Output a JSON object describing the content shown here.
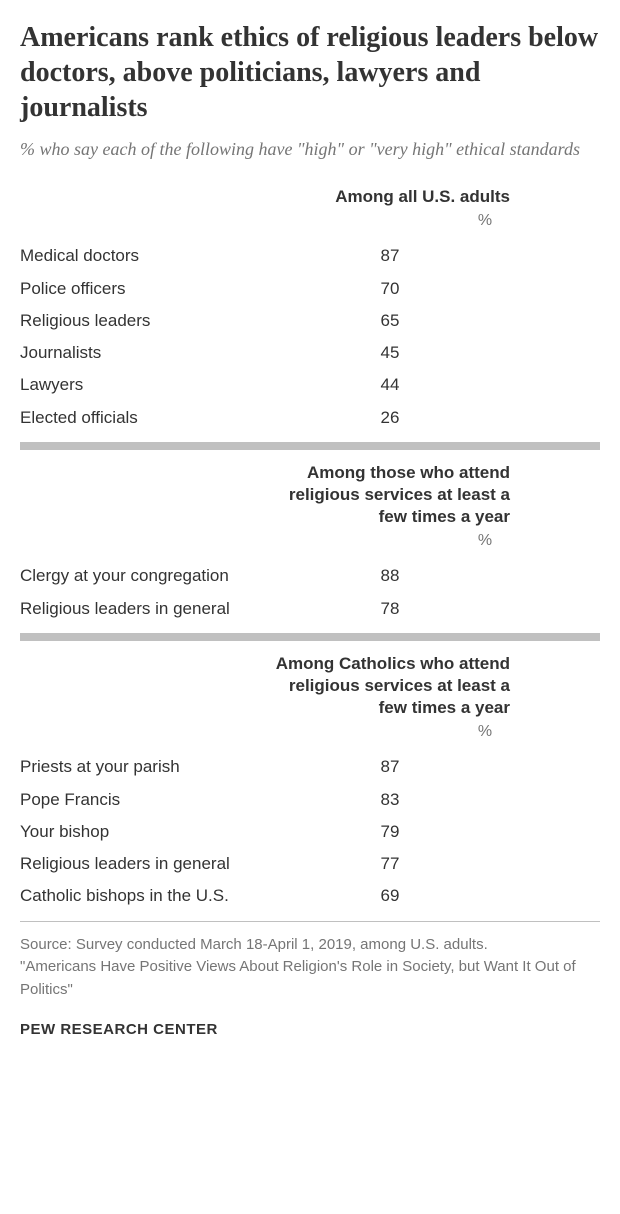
{
  "title": "Americans rank ethics of religious leaders below doctors, above politicians, lawyers and journalists",
  "subtitle": "% who say each of the following have \"high\" or \"very high\" ethical standards",
  "percent_symbol": "%",
  "sections": [
    {
      "header": "Among all U.S. adults",
      "rows": [
        {
          "label": "Medical doctors",
          "value": "87"
        },
        {
          "label": "Police officers",
          "value": "70"
        },
        {
          "label": "Religious leaders",
          "value": "65"
        },
        {
          "label": "Journalists",
          "value": "45"
        },
        {
          "label": "Lawyers",
          "value": "44"
        },
        {
          "label": "Elected officials",
          "value": "26"
        }
      ]
    },
    {
      "header": "Among those who attend religious services at least a few times a year",
      "rows": [
        {
          "label": "Clergy at your congregation",
          "value": "88"
        },
        {
          "label": "Religious leaders in general",
          "value": "78"
        }
      ]
    },
    {
      "header": "Among Catholics who attend religious services at least a few times a year",
      "rows": [
        {
          "label": "Priests at your parish",
          "value": "87"
        },
        {
          "label": "Pope Francis",
          "value": "83"
        },
        {
          "label": "Your bishop",
          "value": "79"
        },
        {
          "label": "Religious leaders in general",
          "value": "77"
        },
        {
          "label": "Catholic bishops in the U.S.",
          "value": "69"
        }
      ]
    }
  ],
  "source_line1": "Source: Survey conducted March 18-April 1, 2019, among U.S. adults.",
  "source_line2": "\"Americans Have Positive Views About Religion's Role in Society, but Want It Out of Politics\"",
  "brand": "PEW RESEARCH CENTER",
  "styling": {
    "title_fontsize": 28,
    "title_weight": "bold",
    "title_color": "#333333",
    "subtitle_fontsize": 18,
    "subtitle_style": "italic",
    "subtitle_color": "#757575",
    "header_fontsize": 17,
    "header_weight": "bold",
    "header_color": "#333333",
    "body_font": "Arial, Helvetica, sans-serif",
    "title_font": "Georgia, serif",
    "row_fontsize": 17,
    "row_color": "#333333",
    "percent_color": "#757575",
    "divider_color": "#c0c0c0",
    "divider_height": 8,
    "background_color": "#ffffff",
    "source_fontsize": 15,
    "source_color": "#757575",
    "brand_fontsize": 15,
    "brand_weight": "bold",
    "brand_color": "#333333",
    "label_column_width": 280,
    "value_column_width": 180
  }
}
